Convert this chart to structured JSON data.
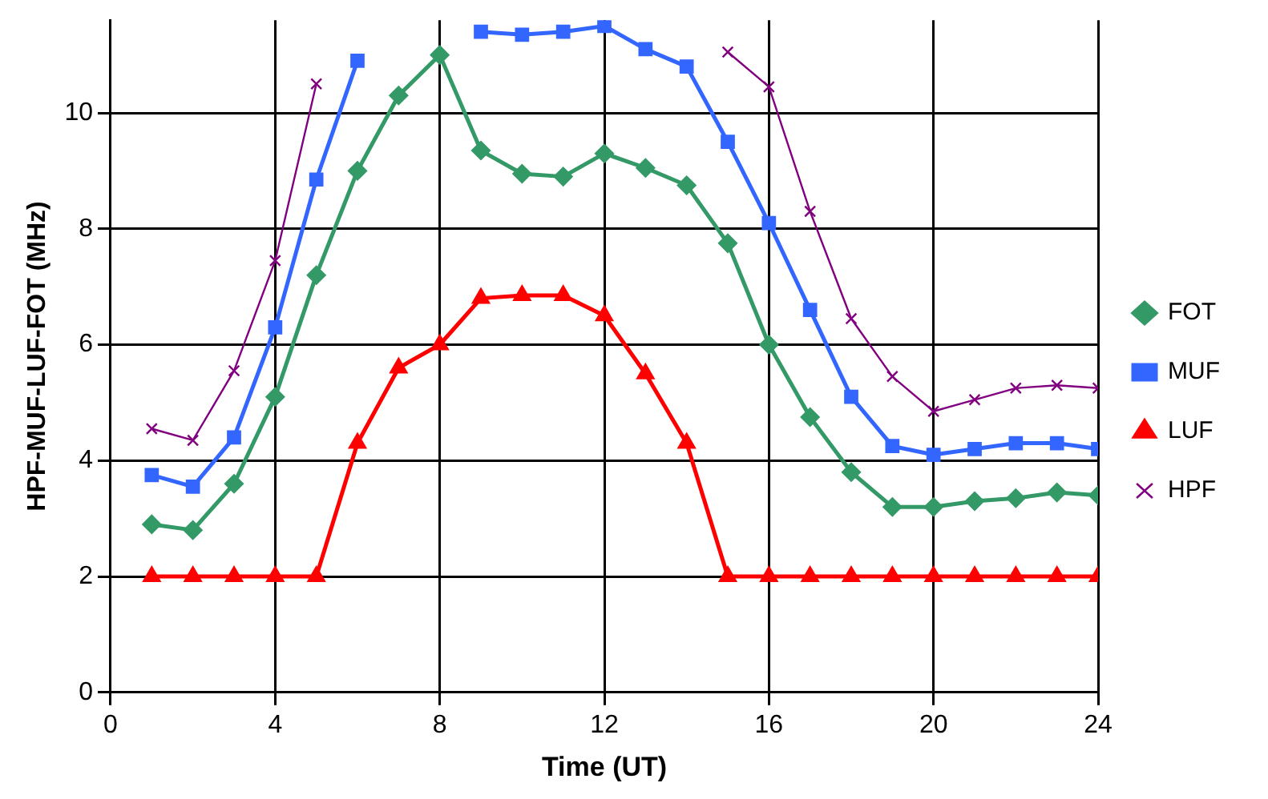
{
  "chart_data": {
    "type": "line",
    "xlabel": "Time (UT)",
    "ylabel": "HPF-MUF-LUF-FOT (MHz)",
    "x": [
      1,
      2,
      3,
      4,
      5,
      6,
      7,
      8,
      9,
      10,
      11,
      12,
      13,
      14,
      15,
      16,
      17,
      18,
      19,
      20,
      21,
      22,
      23,
      24
    ],
    "series": [
      {
        "name": "FOT",
        "color": "#339966",
        "marker": "diamond",
        "values": [
          2.9,
          2.8,
          3.6,
          5.1,
          7.2,
          9.0,
          10.3,
          11.0,
          9.35,
          8.95,
          8.9,
          9.3,
          9.05,
          8.75,
          7.75,
          6.0,
          4.75,
          3.8,
          3.2,
          3.2,
          3.3,
          3.35,
          3.45,
          3.4
        ]
      },
      {
        "name": "MUF",
        "color": "#3366ff",
        "marker": "square",
        "values": [
          3.75,
          3.55,
          4.4,
          6.3,
          8.85,
          10.9,
          null,
          null,
          11.4,
          11.35,
          11.4,
          11.5,
          11.1,
          10.8,
          9.5,
          8.1,
          6.6,
          5.1,
          4.25,
          4.1,
          4.2,
          4.3,
          4.3,
          4.2
        ]
      },
      {
        "name": "LUF",
        "color": "#ff0000",
        "marker": "triangle",
        "values": [
          2,
          2,
          2,
          2,
          2,
          4.3,
          5.6,
          6.0,
          6.8,
          6.85,
          6.85,
          6.5,
          5.5,
          4.3,
          2,
          2,
          2,
          2,
          2,
          2,
          2,
          2,
          2,
          2
        ]
      },
      {
        "name": "HPF",
        "color": "#800080",
        "marker": "cross",
        "values": [
          4.55,
          4.35,
          5.55,
          7.45,
          10.5,
          null,
          null,
          null,
          null,
          null,
          null,
          null,
          null,
          null,
          11.05,
          10.45,
          8.3,
          6.45,
          5.45,
          4.85,
          5.05,
          5.25,
          5.3,
          5.25
        ]
      }
    ],
    "xlim": [
      0,
      24
    ],
    "xticks": [
      0,
      4,
      8,
      12,
      16,
      20,
      24
    ],
    "ylim": [
      0,
      11.6
    ],
    "yticks": [
      0,
      2,
      4,
      6,
      8,
      10
    ],
    "grid": true,
    "legend": "right",
    "line_style": "solid"
  }
}
